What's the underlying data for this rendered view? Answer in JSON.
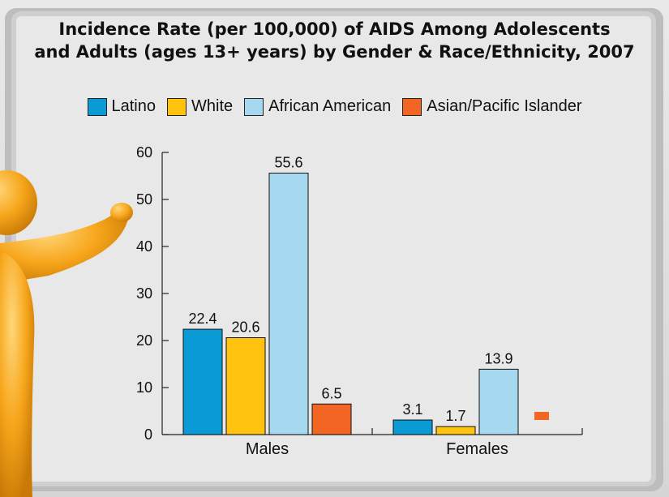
{
  "chart_data": {
    "type": "bar",
    "title_lines": [
      "Incidence Rate (per 100,000) of AIDS Among Adolescents",
      "and Adults (ages 13+ years) by Gender & Race/Ethnicity, 2007"
    ],
    "categories": [
      "Males",
      "Females"
    ],
    "series": [
      {
        "name": "Latino",
        "values": [
          22.4,
          3.1
        ],
        "color": "#0a9bd6"
      },
      {
        "name": "White",
        "values": [
          20.6,
          1.7
        ],
        "color": "#ffc20e"
      },
      {
        "name": "African American",
        "values": [
          55.6,
          13.9
        ],
        "color": "#a6d8f0"
      },
      {
        "name": "Asian/Pacific Islander",
        "values": [
          6.5,
          null
        ],
        "color": "#f26522"
      }
    ],
    "data_labels": [
      [
        "22.4",
        "3.1"
      ],
      [
        "20.6",
        "1.7"
      ],
      [
        "55.6",
        "13.9"
      ],
      [
        "6.5",
        ""
      ]
    ],
    "y_ticks": [
      "0",
      "10",
      "20",
      "30",
      "40",
      "50",
      "60"
    ],
    "ylim": [
      0,
      60
    ],
    "xlabel": "",
    "ylabel": "",
    "legend_position": "top",
    "grid": false
  }
}
